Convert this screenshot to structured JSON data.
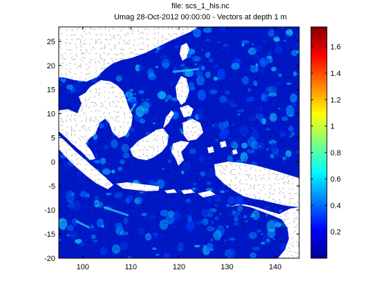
{
  "chart_data": {
    "type": "heatmap",
    "title": "file: scs_1_his.nc",
    "subtitle": "Umag 28-Oct-2012 00:00:00  - Vectors at depth 1 m",
    "xlabel": "",
    "ylabel": "",
    "xlim": [
      95,
      145
    ],
    "ylim": [
      -20,
      28
    ],
    "xticks": [
      100,
      110,
      120,
      130,
      140
    ],
    "yticks": [
      -20,
      -15,
      -10,
      -5,
      0,
      5,
      10,
      15,
      20,
      25
    ],
    "colorbar": {
      "colormap": "jet",
      "clim": [
        0,
        1.75
      ],
      "ticks": [
        0.2,
        0.4,
        0.6,
        0.8,
        1,
        1.2,
        1.4,
        1.6
      ]
    },
    "ocean_base_color": "#0018c8",
    "land_color": "#ffffff",
    "grid": false,
    "legend": "colorbar-right"
  }
}
